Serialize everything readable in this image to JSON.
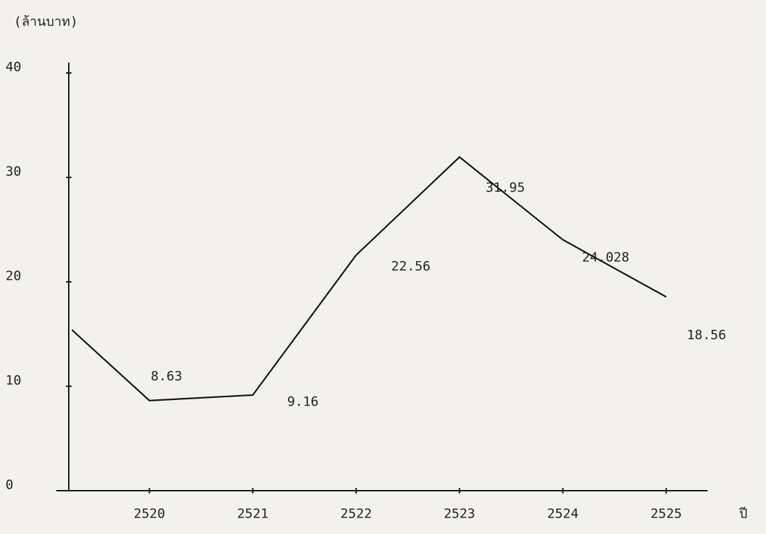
{
  "chart_data": {
    "type": "line",
    "y_label": "(ล้านบาท)",
    "x_label": "ปี",
    "x": [
      2519.25,
      2520,
      2521,
      2522,
      2523,
      2524,
      2525
    ],
    "series": [
      {
        "color": "#111111",
        "values": [
          15.4,
          8.63,
          9.16,
          22.56,
          31.95,
          24.028,
          18.56
        ]
      }
    ],
    "xlim": [
      2519.1,
      2525.4
    ],
    "xticks": [
      2520,
      2521,
      2522,
      2523,
      2524,
      2525
    ],
    "ylim": [
      0,
      41
    ],
    "yticks": [
      0,
      10,
      20,
      30,
      40
    ]
  }
}
